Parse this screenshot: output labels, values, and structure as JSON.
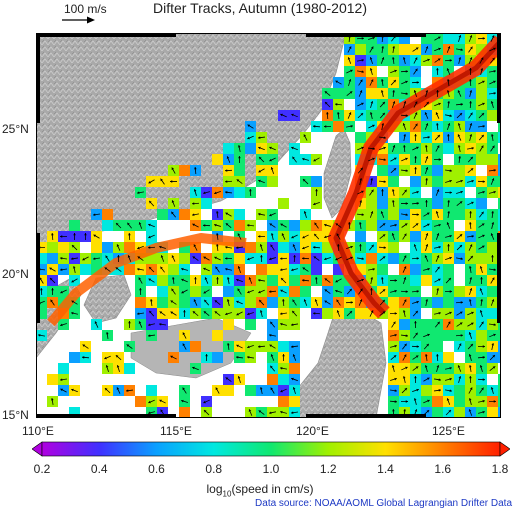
{
  "title": "Difter Tracks, Autumn (1980-2012)",
  "scale_arrow": {
    "label": "100 m/s"
  },
  "lat_ticks": [
    "25°N",
    "20°N",
    "15°N"
  ],
  "lon_ticks": [
    "110°E",
    "115°E",
    "120°E",
    "125°E"
  ],
  "colorbar": {
    "ticks": [
      "0.2",
      "0.4",
      "0.6",
      "0.8",
      "1.0",
      "1.2",
      "1.4",
      "1.6",
      "1.8"
    ],
    "title_prefix": "log",
    "title_sub": "10",
    "title_suffix": "(speed in cm/s)",
    "colors": [
      "#b000e0",
      "#4030ff",
      "#0aa0ff",
      "#00e8e0",
      "#10e870",
      "#a0f000",
      "#ffe000",
      "#ff8000",
      "#ff2000"
    ]
  },
  "source": "Data source: NOAA/AOML Global Lagrangian Drifter Data",
  "colors": {
    "land": "#a8a8a8",
    "sea_background": "#ffffff",
    "kuroshio": "#ff3000",
    "map_frame": "#000000",
    "source_text": "#1d39c4"
  }
}
